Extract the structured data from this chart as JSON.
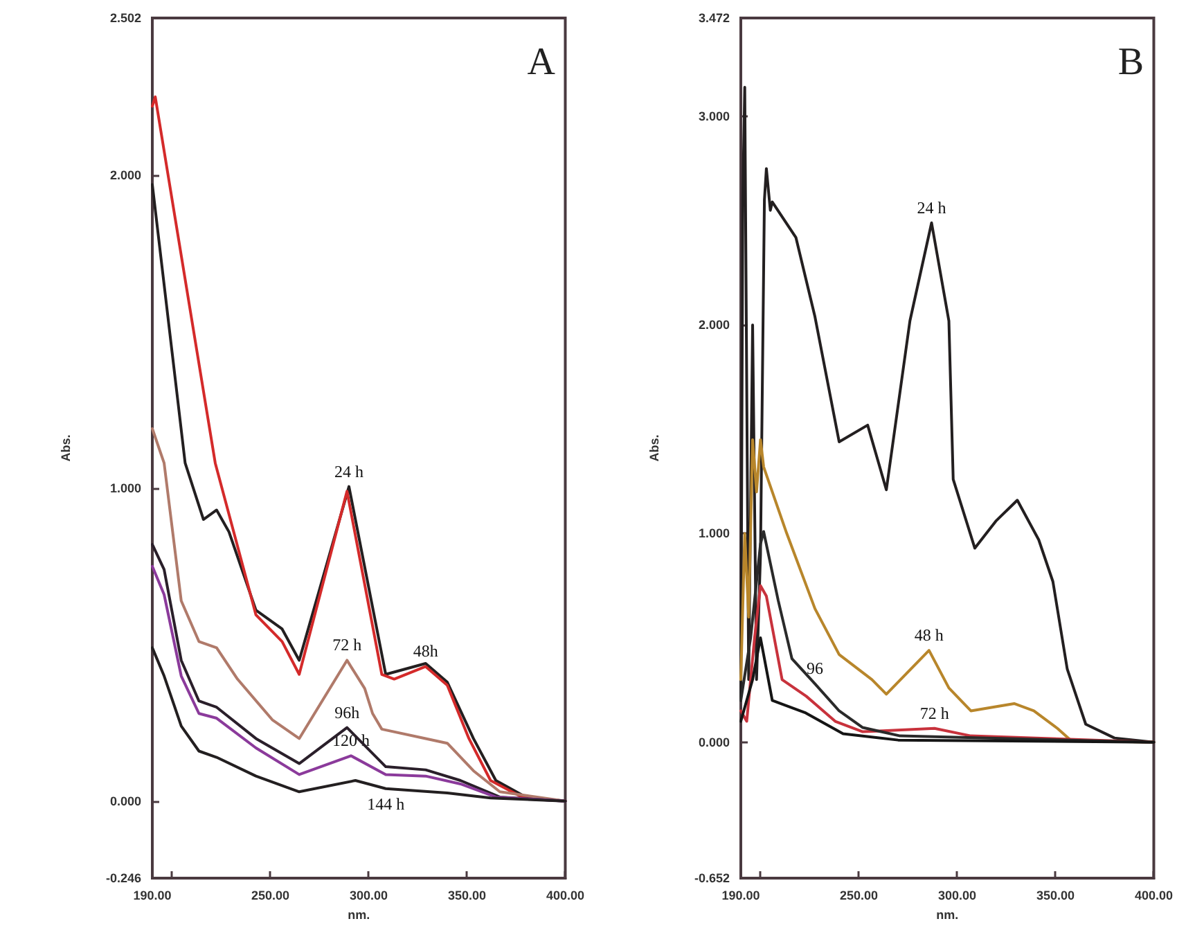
{
  "chart_data": [
    {
      "type": "line",
      "xlabel": "nm.",
      "ylabel": "Abs.",
      "marker": "none",
      "grid": false,
      "xlim": [
        190,
        400
      ],
      "ylim": [
        -0.246,
        2.502
      ],
      "xticks": [
        {
          "value": 190,
          "label": "190.00"
        },
        {
          "value": 200,
          "label": null
        },
        {
          "value": 250,
          "label": "250.00"
        },
        {
          "value": 300,
          "label": "300.00"
        },
        {
          "value": 350,
          "label": "350.00"
        },
        {
          "value": 400,
          "label": "400.00"
        }
      ],
      "yticks": [
        {
          "value": -0.246,
          "label": "-0.246"
        },
        {
          "value": 0,
          "label": "0.000"
        },
        {
          "value": 1,
          "label": "1.000"
        },
        {
          "value": 2,
          "label": "2.000"
        },
        {
          "value": 2.502,
          "label": "2.502"
        }
      ],
      "series": [
        {
          "color": "#231f20",
          "x": [
            190,
            206.7,
            216,
            222.7,
            229,
            242.7,
            256,
            264.7,
            290,
            308.7,
            329,
            340,
            353.3,
            364.7,
            380,
            400
          ],
          "values": [
            1.97,
            1.08,
            0.9,
            0.93,
            0.86,
            0.61,
            0.55,
            0.45,
            1.005,
            0.405,
            0.44,
            0.38,
            0.2,
            0.066,
            0.013,
            0
          ]
        },
        {
          "color": "#d42a2a",
          "x": [
            190,
            191.5,
            222,
            242.7,
            256,
            264.7,
            289,
            306.7,
            313,
            329,
            340,
            351,
            362,
            378,
            400
          ],
          "values": [
            2.22,
            2.25,
            1.08,
            0.595,
            0.51,
            0.405,
            0.99,
            0.405,
            0.39,
            0.43,
            0.37,
            0.2,
            0.066,
            0.013,
            0
          ]
        },
        {
          "color": "#b07a6a",
          "x": [
            190,
            196,
            204.7,
            213.7,
            222.7,
            233.3,
            251,
            264.7,
            289,
            298,
            302,
            306.7,
            329,
            340,
            353.3,
            366.7,
            400
          ],
          "values": [
            1.19,
            1.08,
            0.64,
            0.51,
            0.49,
            0.39,
            0.26,
            0.2,
            0.45,
            0.36,
            0.28,
            0.23,
            0.2,
            0.185,
            0.097,
            0.03,
            0
          ]
        },
        {
          "color": "#2a1f2a",
          "x": [
            190,
            196,
            204.7,
            213.7,
            222.7,
            242.7,
            264.7,
            289,
            308.7,
            329,
            346.7,
            366.7,
            400
          ],
          "values": [
            0.82,
            0.74,
            0.45,
            0.32,
            0.3,
            0.2,
            0.12,
            0.235,
            0.11,
            0.1,
            0.066,
            0.013,
            0
          ]
        },
        {
          "color": "#8b3a9b",
          "x": [
            190,
            196,
            204.7,
            213.7,
            222.7,
            242.7,
            264.7,
            291,
            308.7,
            329,
            346.7,
            364.7,
            400
          ],
          "values": [
            0.75,
            0.66,
            0.4,
            0.28,
            0.265,
            0.17,
            0.085,
            0.145,
            0.085,
            0.08,
            0.055,
            0.013,
            0
          ]
        },
        {
          "color": "#231f20",
          "x": [
            190,
            196,
            204.7,
            213.7,
            222.7,
            242.7,
            264.7,
            293.3,
            308.7,
            340,
            362,
            400
          ],
          "values": [
            0.49,
            0.4,
            0.24,
            0.16,
            0.14,
            0.08,
            0.03,
            0.066,
            0.04,
            0.026,
            0.01,
            0
          ]
        }
      ],
      "annotations": [
        "A",
        {
          "text": "24 h",
          "x": 290,
          "y": 1.005
        },
        {
          "text": "72 h",
          "x": 289,
          "y": 0.45
        },
        {
          "text": "48h",
          "x": 329,
          "y": 0.43
        },
        {
          "text": "96h",
          "x": 289,
          "y": 0.235
        },
        {
          "text": "120 h",
          "x": 291,
          "y": 0.145
        },
        {
          "text": "144 h",
          "x": 308.7,
          "y": 0.04
        }
      ]
    },
    {
      "type": "line",
      "xlabel": "nm.",
      "ylabel": "Abs.",
      "marker": "none",
      "grid": false,
      "xlim": [
        190,
        400
      ],
      "ylim": [
        -0.652,
        3.472
      ],
      "xticks": [
        {
          "value": 190,
          "label": "190.00"
        },
        {
          "value": 200,
          "label": null
        },
        {
          "value": 250,
          "label": "250.00"
        },
        {
          "value": 300,
          "label": "300.00"
        },
        {
          "value": 350,
          "label": "350.00"
        },
        {
          "value": 400,
          "label": "400.00"
        }
      ],
      "yticks": [
        {
          "value": -0.652,
          "label": "-0.652"
        },
        {
          "value": 0,
          "label": "0.000"
        },
        {
          "value": 1,
          "label": "1.000"
        },
        {
          "value": 2,
          "label": "2.000"
        },
        {
          "value": 3,
          "label": "3.000"
        },
        {
          "value": 3.472,
          "label": "3.472"
        }
      ],
      "series": [
        {
          "color": "#231f20",
          "x": [
            190,
            191,
            192,
            194,
            196,
            198,
            200,
            202,
            203,
            205,
            206,
            218,
            227.7,
            240,
            254.5,
            264,
            276,
            287,
            295.8,
            298,
            309,
            319.7,
            330.6,
            341.5,
            348.7,
            356,
            365.4,
            380,
            400
          ],
          "values": [
            0.2,
            2.6,
            3.14,
            0.3,
            2.0,
            0.3,
            0.9,
            2.6,
            2.75,
            2.55,
            2.59,
            2.42,
            2.04,
            1.44,
            1.52,
            1.21,
            2.02,
            2.49,
            2.02,
            1.26,
            0.93,
            1.06,
            1.16,
            0.97,
            0.77,
            0.35,
            0.086,
            0.02,
            0
          ]
        },
        {
          "color": "#b8862b",
          "x": [
            190,
            192,
            194,
            196,
            198,
            200,
            201.6,
            213,
            227.7,
            240,
            256.7,
            264,
            285.7,
            295.8,
            307,
            329,
            339,
            351,
            358,
            400
          ],
          "values": [
            0.3,
            1.0,
            0.6,
            1.45,
            1.2,
            1.45,
            1.32,
            1.01,
            0.64,
            0.42,
            0.3,
            0.23,
            0.44,
            0.26,
            0.15,
            0.185,
            0.15,
            0.066,
            0.007,
            0
          ]
        },
        {
          "color": "#c8323c",
          "x": [
            190,
            193,
            197,
            200,
            203,
            211,
            223.3,
            238,
            252,
            288.5,
            307,
            400
          ],
          "values": [
            0.15,
            0.1,
            0.5,
            0.75,
            0.7,
            0.3,
            0.22,
            0.1,
            0.05,
            0.066,
            0.03,
            0
          ]
        },
        {
          "color": "#2a2a2a",
          "x": [
            190,
            195,
            200,
            201.6,
            209,
            216,
            227.7,
            240,
            252,
            271,
            400
          ],
          "values": [
            0.2,
            0.5,
            0.95,
            1.01,
            0.68,
            0.4,
            0.28,
            0.15,
            0.07,
            0.03,
            0
          ]
        },
        {
          "color": "#151515",
          "x": [
            190,
            196,
            200,
            206,
            223,
            242,
            270,
            400
          ],
          "values": [
            0.1,
            0.3,
            0.5,
            0.2,
            0.14,
            0.04,
            0.01,
            0
          ]
        }
      ],
      "annotations": [
        "B",
        {
          "text": "24 h",
          "x": 287,
          "y": 2.49
        },
        {
          "text": "48 h",
          "x": 285.7,
          "y": 0.44
        },
        {
          "text": "72 h",
          "x": 288.5,
          "y": 0.066
        },
        {
          "text": "96",
          "x": 227.7,
          "y": 0.28
        }
      ]
    }
  ]
}
